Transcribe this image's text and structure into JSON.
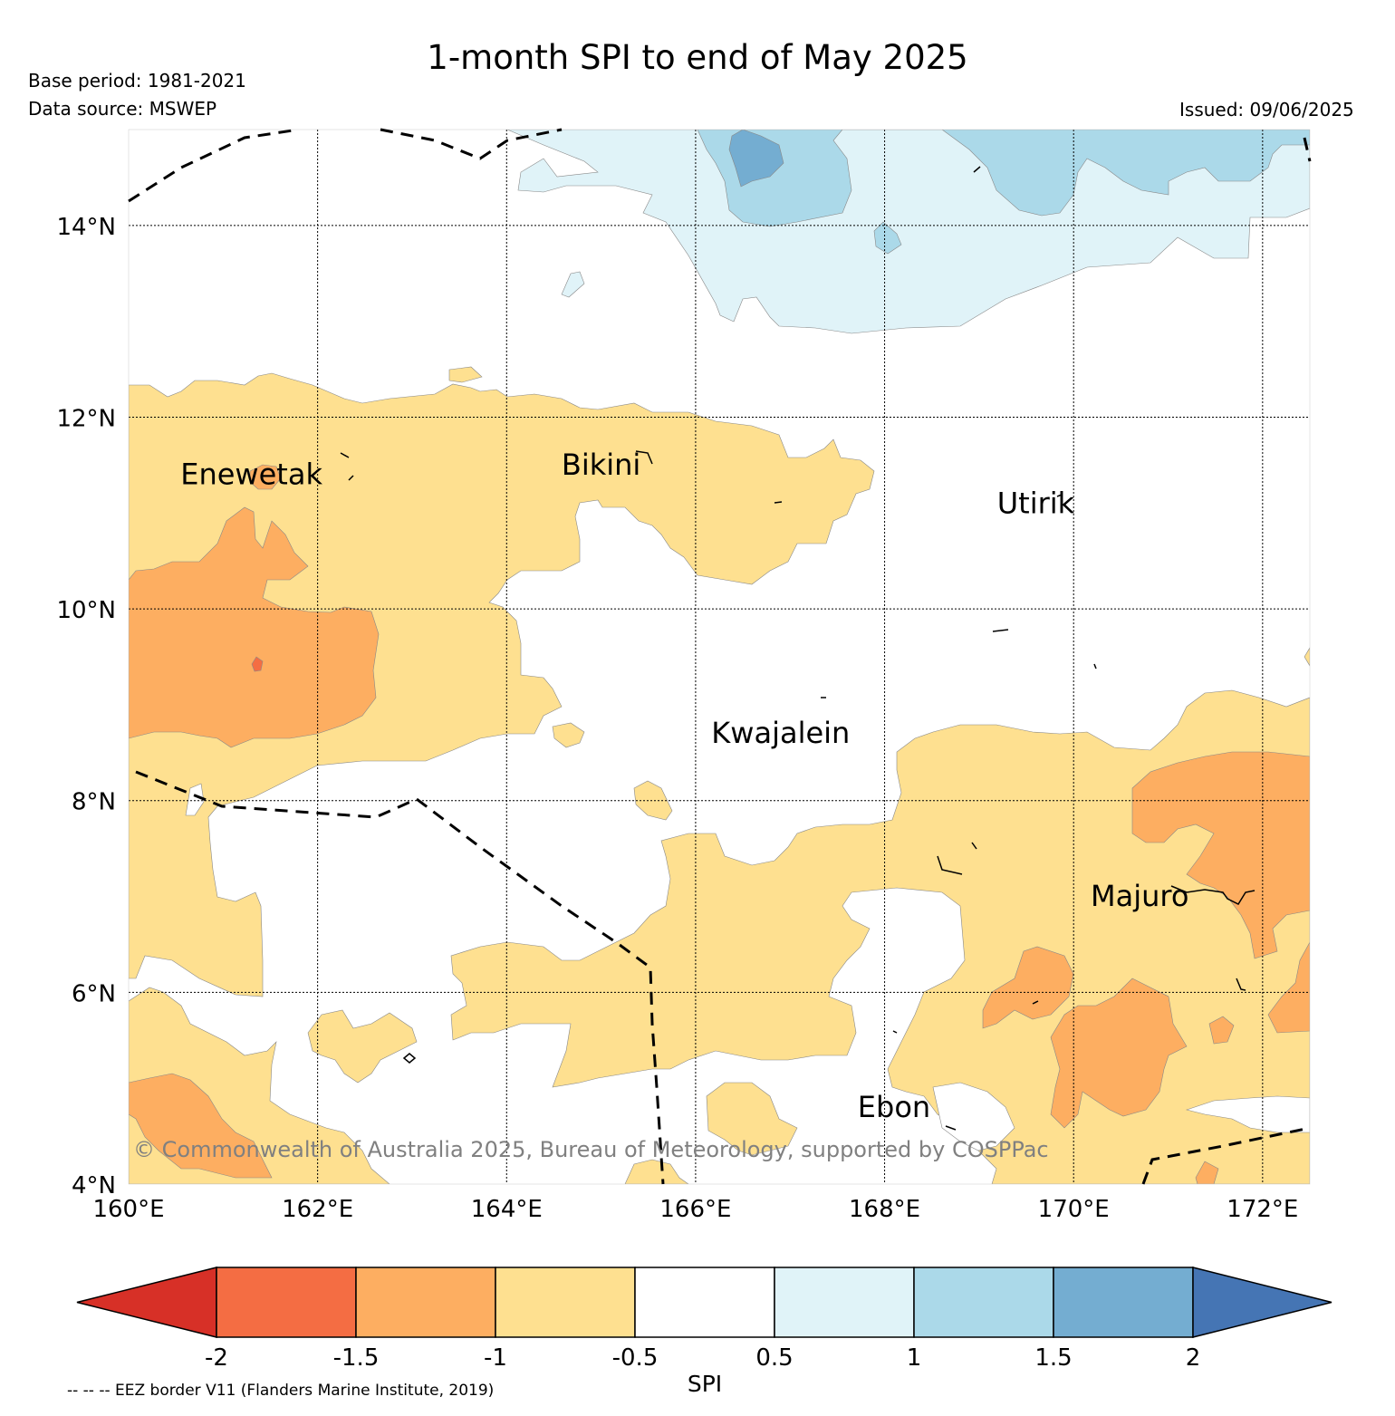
{
  "title": "1-month SPI to end of May 2025",
  "meta": {
    "base_period": "Base period: 1981-2021",
    "data_source": "Data source: MSWEP",
    "issued": "Issued: 09/06/2025"
  },
  "copyright": "© Commonwealth of Australia 2025, Bureau of Meteorology, supported by COSPPac",
  "eez_note": "-- -- -- EEZ border V11 (Flanders Marine Institute, 2019)",
  "map": {
    "lon_range": [
      160,
      172.5
    ],
    "lat_range": [
      4,
      15
    ],
    "lon_ticks": [
      {
        "value": 160,
        "label": "160°E"
      },
      {
        "value": 162,
        "label": "162°E"
      },
      {
        "value": 164,
        "label": "164°E"
      },
      {
        "value": 166,
        "label": "166°E"
      },
      {
        "value": 168,
        "label": "168°E"
      },
      {
        "value": 170,
        "label": "170°E"
      },
      {
        "value": 172,
        "label": "172°E"
      }
    ],
    "lat_ticks": [
      {
        "value": 4,
        "label": "4°N"
      },
      {
        "value": 6,
        "label": "6°N"
      },
      {
        "value": 8,
        "label": "8°N"
      },
      {
        "value": 10,
        "label": "10°N"
      },
      {
        "value": 12,
        "label": "12°N"
      },
      {
        "value": 14,
        "label": "14°N"
      }
    ],
    "places": [
      {
        "name": "Enewetak",
        "lon": 161.3,
        "lat": 11.3
      },
      {
        "name": "Bikini",
        "lon": 165.0,
        "lat": 11.4
      },
      {
        "name": "Utirik",
        "lon": 169.6,
        "lat": 11.0
      },
      {
        "name": "Kwajalein",
        "lon": 166.9,
        "lat": 8.6
      },
      {
        "name": "Majuro",
        "lon": 170.7,
        "lat": 6.9
      },
      {
        "name": "Ebon",
        "lon": 168.1,
        "lat": 4.7
      }
    ]
  },
  "colorbar": {
    "label": "SPI",
    "ticks": [
      "-2",
      "-1.5",
      "-1",
      "-0.5",
      "0.5",
      "1",
      "1.5",
      "2"
    ],
    "colors": {
      "lt_m2": "#d73027",
      "m2_m15": "#f46d43",
      "m15_m1": "#fdae61",
      "m1_m05": "#fee090",
      "m05_05": "#ffffff",
      "p05_1": "#e0f3f8",
      "p1_15": "#abd9e9",
      "p15_2": "#74add1",
      "gt_2": "#4575b4"
    }
  }
}
